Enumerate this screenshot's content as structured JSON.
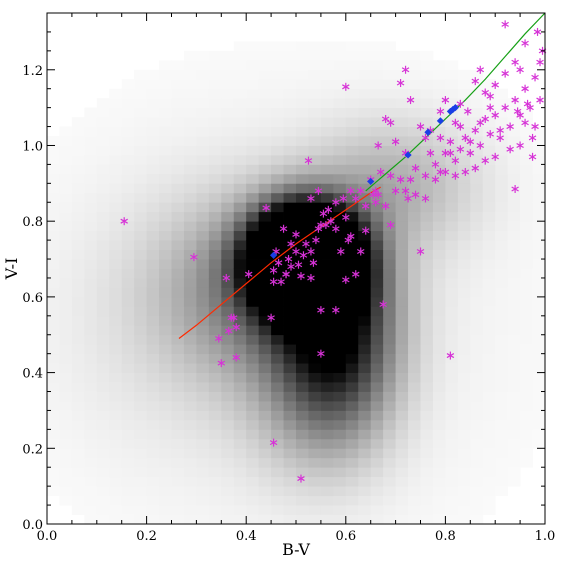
{
  "chart_data": {
    "type": "scatter",
    "title": "",
    "xlabel": "B-V",
    "ylabel": "V-I",
    "xlim": [
      0.0,
      1.0
    ],
    "ylim": [
      0.0,
      1.35
    ],
    "grid": false,
    "legend": "none",
    "x_ticks": [
      0.0,
      0.2,
      0.4,
      0.6,
      0.8,
      1.0
    ],
    "x_tick_labels": [
      "0.0",
      "0.2",
      "0.4",
      "0.6",
      "0.8",
      "1.0"
    ],
    "y_ticks": [
      0.0,
      0.2,
      0.4,
      0.6,
      0.8,
      1.0,
      1.2
    ],
    "y_tick_labels": [
      "0.0",
      "0.2",
      "0.4",
      "0.6",
      "0.8",
      "1.0",
      "1.2"
    ],
    "colors": {
      "stars": "#d633d6",
      "diamonds": "#1a3ee6",
      "red_curve": "#ff2a00",
      "green_curve": "#16a016",
      "density_dark": "#000000"
    },
    "density": {
      "description_note": "",
      "x0": 0.0,
      "dx": 0.025,
      "y0": 0.0,
      "dy": 0.025,
      "blobs": [
        {
          "cx": 0.52,
          "cy": 0.7,
          "sx": 0.07,
          "sy": 0.09,
          "amp": 2.6
        },
        {
          "cx": 0.58,
          "cy": 0.5,
          "sx": 0.08,
          "sy": 0.16,
          "amp": 0.75
        },
        {
          "cx": 0.45,
          "cy": 0.62,
          "sx": 0.14,
          "sy": 0.16,
          "amp": 0.45
        },
        {
          "cx": 0.7,
          "cy": 0.9,
          "sx": 0.12,
          "sy": 0.12,
          "amp": 0.25
        },
        {
          "cx": 0.3,
          "cy": 0.55,
          "sx": 0.2,
          "sy": 0.25,
          "amp": 0.08
        },
        {
          "cx": 0.55,
          "cy": 0.3,
          "sx": 0.1,
          "sy": 0.15,
          "amp": 0.2
        },
        {
          "cx": 0.5,
          "cy": 0.55,
          "sx": 0.35,
          "sy": 0.45,
          "amp": 0.07
        }
      ]
    },
    "series": [
      {
        "marker": "asterisk",
        "points": [
          [
            0.155,
            0.8
          ],
          [
            0.295,
            0.705
          ],
          [
            0.345,
            0.49
          ],
          [
            0.35,
            0.425
          ],
          [
            0.365,
            0.51
          ],
          [
            0.37,
            0.545
          ],
          [
            0.375,
            0.545
          ],
          [
            0.38,
            0.52
          ],
          [
            0.38,
            0.44
          ],
          [
            0.36,
            0.65
          ],
          [
            0.405,
            0.66
          ],
          [
            0.44,
            0.835
          ],
          [
            0.45,
            0.545
          ],
          [
            0.455,
            0.67
          ],
          [
            0.455,
            0.215
          ],
          [
            0.46,
            0.72
          ],
          [
            0.465,
            0.69
          ],
          [
            0.47,
            0.64
          ],
          [
            0.475,
            0.78
          ],
          [
            0.48,
            0.66
          ],
          [
            0.485,
            0.7
          ],
          [
            0.49,
            0.68
          ],
          [
            0.5,
            0.72
          ],
          [
            0.505,
            0.685
          ],
          [
            0.51,
            0.655
          ],
          [
            0.51,
            0.12
          ],
          [
            0.52,
            0.74
          ],
          [
            0.53,
            0.65
          ],
          [
            0.535,
            0.69
          ],
          [
            0.54,
            0.75
          ],
          [
            0.545,
            0.78
          ],
          [
            0.55,
            0.79
          ],
          [
            0.555,
            0.82
          ],
          [
            0.56,
            0.79
          ],
          [
            0.57,
            0.8
          ],
          [
            0.58,
            0.85
          ],
          [
            0.59,
            0.72
          ],
          [
            0.595,
            0.86
          ],
          [
            0.6,
            0.81
          ],
          [
            0.605,
            0.75
          ],
          [
            0.61,
            0.88
          ],
          [
            0.62,
            0.86
          ],
          [
            0.63,
            0.88
          ],
          [
            0.64,
            0.84
          ],
          [
            0.65,
            0.91
          ],
          [
            0.655,
            0.87
          ],
          [
            0.66,
            0.88
          ],
          [
            0.665,
            0.87
          ],
          [
            0.67,
            0.93
          ],
          [
            0.68,
            0.84
          ],
          [
            0.69,
            0.92
          ],
          [
            0.7,
            0.88
          ],
          [
            0.71,
            0.91
          ],
          [
            0.72,
            0.88
          ],
          [
            0.725,
            0.86
          ],
          [
            0.73,
            0.91
          ],
          [
            0.74,
            0.94
          ],
          [
            0.75,
            0.72
          ],
          [
            0.76,
            0.92
          ],
          [
            0.77,
            0.98
          ],
          [
            0.78,
            0.95
          ],
          [
            0.79,
            0.93
          ],
          [
            0.8,
            0.98
          ],
          [
            0.81,
            1.01
          ],
          [
            0.82,
            0.96
          ],
          [
            0.83,
            1.05
          ],
          [
            0.84,
            1.02
          ],
          [
            0.85,
            0.98
          ],
          [
            0.86,
            1.04
          ],
          [
            0.87,
            1.0
          ],
          [
            0.88,
            1.07
          ],
          [
            0.89,
            1.03
          ],
          [
            0.9,
            1.08
          ],
          [
            0.91,
            1.04
          ],
          [
            0.92,
            1.1
          ],
          [
            0.93,
            1.05
          ],
          [
            0.94,
            1.12
          ],
          [
            0.95,
            1.08
          ],
          [
            0.96,
            1.15
          ],
          [
            0.97,
            1.1
          ],
          [
            0.98,
            1.18
          ],
          [
            0.99,
            1.22
          ],
          [
            0.995,
            1.25
          ],
          [
            0.92,
            1.32
          ],
          [
            0.96,
            1.27
          ],
          [
            0.975,
            0.97
          ],
          [
            0.94,
            0.885
          ],
          [
            0.81,
            0.445
          ],
          [
            0.6,
            1.155
          ],
          [
            0.71,
            1.165
          ],
          [
            0.73,
            1.12
          ],
          [
            0.72,
            1.2
          ],
          [
            0.75,
            1.05
          ],
          [
            0.76,
            1.02
          ],
          [
            0.69,
            1.06
          ],
          [
            0.68,
            1.07
          ],
          [
            0.7,
            1.01
          ],
          [
            0.665,
            1.0
          ],
          [
            0.64,
            0.775
          ],
          [
            0.66,
            0.85
          ],
          [
            0.62,
            0.66
          ],
          [
            0.6,
            0.645
          ],
          [
            0.58,
            0.565
          ],
          [
            0.55,
            0.565
          ],
          [
            0.55,
            0.45
          ],
          [
            0.675,
            0.58
          ],
          [
            0.69,
            0.79
          ],
          [
            0.63,
            0.72
          ],
          [
            0.61,
            0.76
          ],
          [
            0.58,
            0.78
          ],
          [
            0.53,
            0.72
          ],
          [
            0.515,
            0.71
          ],
          [
            0.5,
            0.765
          ],
          [
            0.49,
            0.74
          ],
          [
            0.48,
            0.66
          ],
          [
            0.455,
            0.64
          ],
          [
            0.525,
            0.96
          ],
          [
            0.53,
            0.86
          ],
          [
            0.545,
            0.88
          ],
          [
            0.565,
            0.83
          ],
          [
            0.79,
            1.09
          ],
          [
            0.8,
            1.12
          ],
          [
            0.82,
            1.06
          ],
          [
            0.83,
            1.11
          ],
          [
            0.845,
            1.09
          ],
          [
            0.86,
            1.17
          ],
          [
            0.87,
            1.2
          ],
          [
            0.88,
            1.14
          ],
          [
            0.89,
            1.1
          ],
          [
            0.9,
            1.16
          ],
          [
            0.91,
            1.02
          ],
          [
            0.93,
            0.99
          ],
          [
            0.95,
            1.0
          ],
          [
            0.96,
            1.06
          ],
          [
            0.98,
            1.05
          ],
          [
            0.99,
            1.12
          ],
          [
            0.975,
            1.02
          ],
          [
            0.965,
            1.11
          ],
          [
            0.945,
            1.09
          ],
          [
            0.985,
            1.3
          ],
          [
            0.86,
            0.94
          ],
          [
            0.84,
            0.93
          ],
          [
            0.82,
            0.92
          ],
          [
            0.8,
            0.93
          ],
          [
            0.78,
            0.91
          ],
          [
            0.76,
            0.86
          ],
          [
            0.74,
            0.87
          ],
          [
            0.88,
            0.96
          ],
          [
            0.9,
            0.97
          ],
          [
            0.85,
            1.01
          ],
          [
            0.87,
            1.06
          ],
          [
            0.89,
            1.13
          ],
          [
            0.92,
            1.19
          ],
          [
            0.94,
            1.22
          ],
          [
            0.95,
            1.2
          ],
          [
            0.77,
            1.04
          ],
          [
            0.79,
            1.02
          ],
          [
            0.81,
            0.98
          ],
          [
            0.83,
            0.99
          ],
          [
            0.72,
            0.98
          ]
        ]
      },
      {
        "marker": "diamond",
        "points": [
          [
            0.455,
            0.71
          ],
          [
            0.65,
            0.905
          ],
          [
            0.725,
            0.975
          ],
          [
            0.765,
            1.035
          ],
          [
            0.79,
            1.065
          ],
          [
            0.81,
            1.09
          ],
          [
            0.815,
            1.095
          ],
          [
            0.82,
            1.1
          ]
        ]
      }
    ],
    "curves": [
      {
        "color_key": "red_curve",
        "points": [
          [
            0.265,
            0.49
          ],
          [
            0.3,
            0.525
          ],
          [
            0.35,
            0.58
          ],
          [
            0.4,
            0.635
          ],
          [
            0.45,
            0.69
          ],
          [
            0.5,
            0.74
          ],
          [
            0.55,
            0.785
          ],
          [
            0.6,
            0.83
          ],
          [
            0.65,
            0.875
          ],
          [
            0.67,
            0.89
          ]
        ]
      },
      {
        "color_key": "green_curve",
        "points": [
          [
            0.64,
            0.88
          ],
          [
            0.68,
            0.925
          ],
          [
            0.72,
            0.97
          ],
          [
            0.76,
            1.02
          ],
          [
            0.8,
            1.07
          ],
          [
            0.84,
            1.12
          ],
          [
            0.88,
            1.175
          ],
          [
            0.92,
            1.235
          ],
          [
            0.96,
            1.295
          ],
          [
            1.0,
            1.35
          ]
        ]
      }
    ]
  }
}
